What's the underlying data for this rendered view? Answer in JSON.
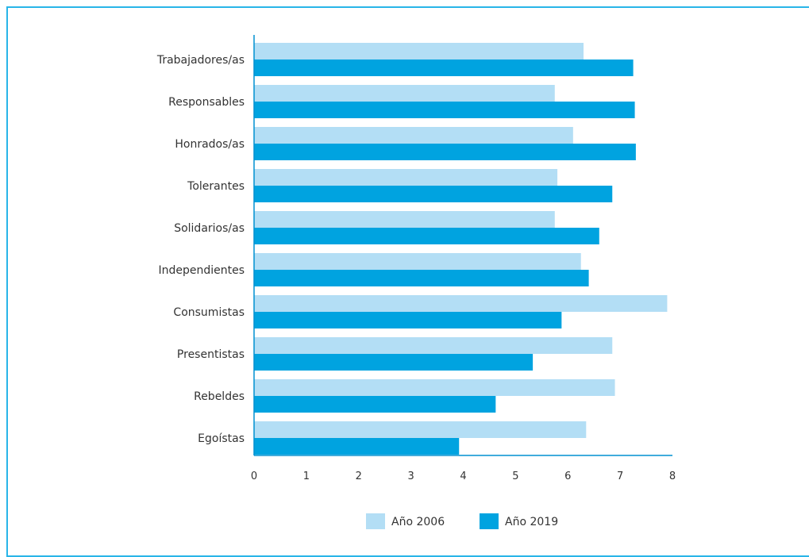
{
  "chart_data": {
    "type": "bar",
    "orientation": "horizontal",
    "categories": [
      "Trabajadores/as",
      "Responsables",
      "Honrados/as",
      "Tolerantes",
      "Solidarios/as",
      "Independientes",
      "Consumistas",
      "Presentistas",
      "Rebeldes",
      "Egoístas"
    ],
    "series": [
      {
        "name": "Año 2006",
        "color": "#b3def5",
        "values": [
          6.3,
          5.75,
          6.1,
          5.8,
          5.75,
          6.25,
          7.9,
          6.85,
          6.9,
          6.35
        ]
      },
      {
        "name": "Año 2019",
        "color": "#00a3e0",
        "values": [
          7.25,
          7.28,
          7.3,
          6.85,
          6.6,
          6.4,
          5.88,
          5.33,
          4.62,
          3.92
        ]
      }
    ],
    "xlim": [
      0,
      8
    ],
    "xticks": [
      "0",
      "1",
      "2",
      "3",
      "4",
      "5",
      "6",
      "7",
      "8"
    ],
    "grid": false,
    "legend_position": "bottom"
  },
  "colors": {
    "frame": "#29b5e8",
    "axis": "#0090d0"
  }
}
